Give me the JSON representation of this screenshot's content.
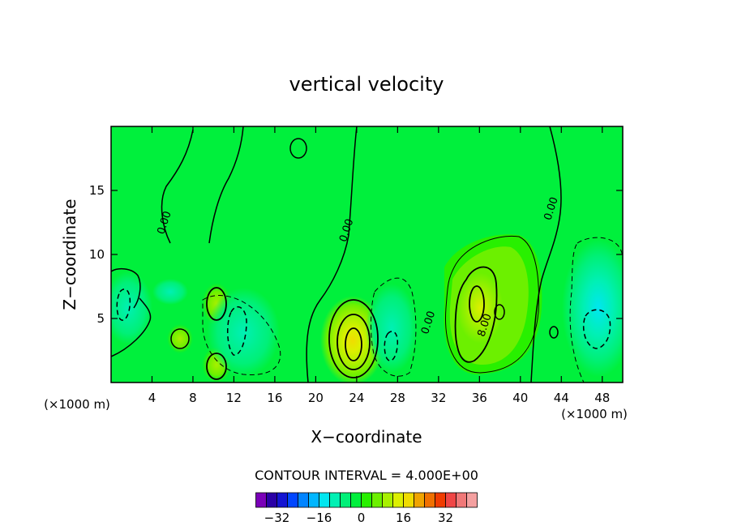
{
  "chart_data": {
    "type": "heatmap",
    "title": "vertical velocity",
    "xlabel": "X−coordinate",
    "ylabel": "Z−coordinate",
    "x_unit_left": "(×1000 m)",
    "x_unit_right": "(×1000 m)",
    "xlim": [
      0,
      50
    ],
    "ylim": [
      0,
      20
    ],
    "x_ticks": [
      "4",
      "8",
      "12",
      "16",
      "20",
      "24",
      "28",
      "32",
      "36",
      "40",
      "44",
      "48"
    ],
    "y_ticks": [
      "5",
      "10",
      "15"
    ],
    "contour_interval_label": "CONTOUR INTERVAL = 4.000E+00",
    "contour_labels": [
      {
        "text": "0.00",
        "x": 5.5,
        "z": 12.4
      },
      {
        "text": "0.00",
        "x": 23.3,
        "z": 11.8
      },
      {
        "text": "0.00",
        "x": 31.3,
        "z": 4.6
      },
      {
        "text": "0.00",
        "x": 43.3,
        "z": 13.5
      },
      {
        "text": "8.00",
        "x": 36.8,
        "z": 4.4
      }
    ],
    "features": [
      {
        "kind": "updraft",
        "x": 23.6,
        "z": 2.8,
        "peak": 20
      },
      {
        "kind": "updraft",
        "x": 35.8,
        "z": 6.0,
        "peak": 14
      },
      {
        "kind": "updraft",
        "x": 10.3,
        "z": 6.1,
        "peak": 8
      },
      {
        "kind": "updraft",
        "x": 10.3,
        "z": 1.5,
        "peak": 7
      },
      {
        "kind": "updraft",
        "x": 6.8,
        "z": 3.3,
        "peak": 5
      },
      {
        "kind": "downdraft",
        "x": 47.8,
        "z": 3.8,
        "peak": -8
      },
      {
        "kind": "downdraft",
        "x": 13.0,
        "z": 4.0,
        "peak": -5
      },
      {
        "kind": "downdraft",
        "x": 27.0,
        "z": 3.5,
        "peak": -5
      },
      {
        "kind": "downdraft",
        "x": 1.5,
        "z": 5.5,
        "peak": -4
      }
    ],
    "colorbar": {
      "colors": [
        "#7a00b8",
        "#2a00a6",
        "#1414d2",
        "#0046ff",
        "#0084ff",
        "#00b6ff",
        "#00e6f0",
        "#00f0b4",
        "#00f078",
        "#00f03c",
        "#28f000",
        "#6cf000",
        "#a8f000",
        "#dcf000",
        "#f0dc00",
        "#f0a400",
        "#f07000",
        "#f03c00",
        "#f04646",
        "#f07878",
        "#f4a0a0"
      ],
      "ticks": [
        "−32",
        "−16",
        "0",
        "16",
        "32"
      ]
    }
  }
}
